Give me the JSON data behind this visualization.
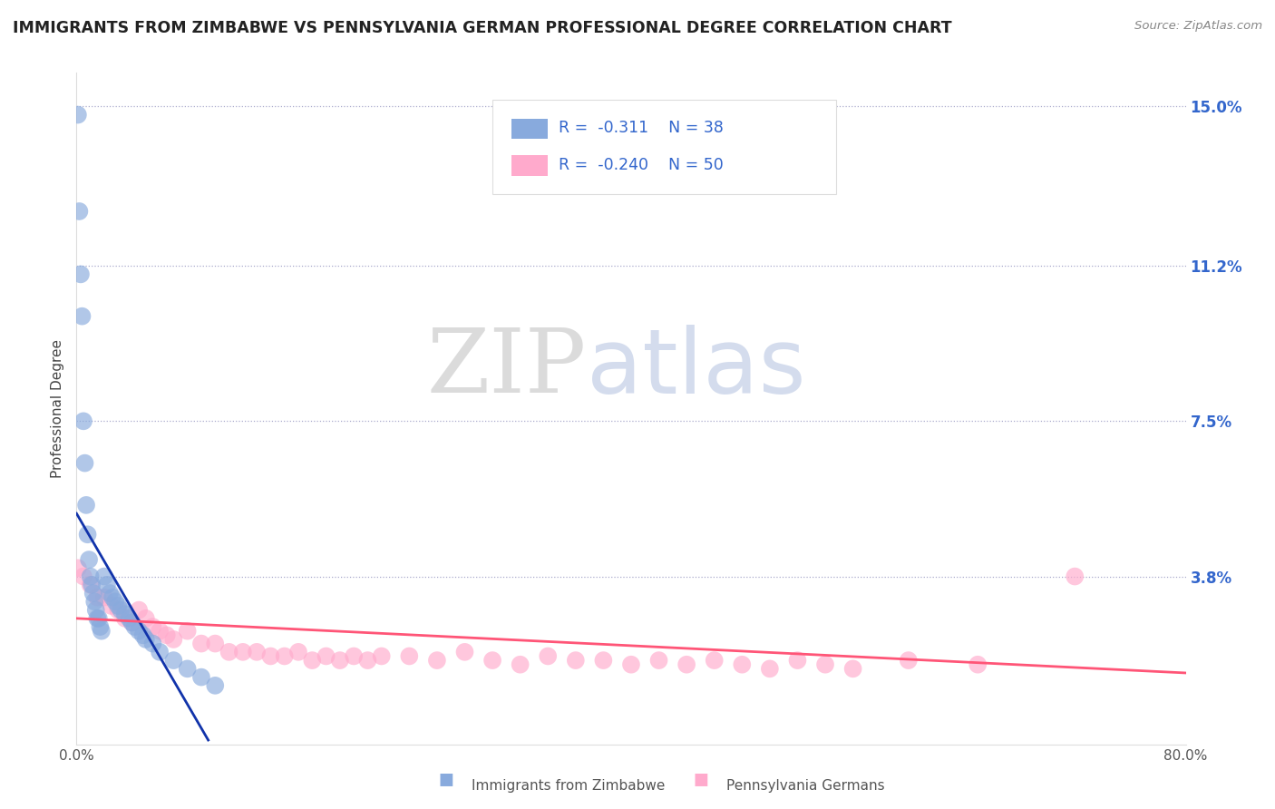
{
  "title": "IMMIGRANTS FROM ZIMBABWE VS PENNSYLVANIA GERMAN PROFESSIONAL DEGREE CORRELATION CHART",
  "source_text": "Source: ZipAtlas.com",
  "ylabel": "Professional Degree",
  "xlim": [
    0.0,
    0.8
  ],
  "ylim": [
    -0.002,
    0.158
  ],
  "ytick_positions": [
    0.038,
    0.075,
    0.112,
    0.15
  ],
  "ytick_labels": [
    "3.8%",
    "7.5%",
    "11.2%",
    "15.0%"
  ],
  "blue_color": "#88aadd",
  "pink_color": "#ffaacc",
  "blue_line_color": "#1133aa",
  "pink_line_color": "#ff5577",
  "legend_R1": "-0.311",
  "legend_N1": "38",
  "legend_R2": "-0.240",
  "legend_N2": "50",
  "legend_label1": "Immigrants from Zimbabwe",
  "legend_label2": "Pennsylvania Germans",
  "blue_scatter_x": [
    0.001,
    0.002,
    0.003,
    0.004,
    0.005,
    0.006,
    0.007,
    0.008,
    0.009,
    0.01,
    0.011,
    0.012,
    0.013,
    0.014,
    0.015,
    0.016,
    0.017,
    0.018,
    0.02,
    0.022,
    0.024,
    0.026,
    0.028,
    0.03,
    0.032,
    0.035,
    0.038,
    0.04,
    0.042,
    0.045,
    0.048,
    0.05,
    0.055,
    0.06,
    0.07,
    0.08,
    0.09,
    0.1
  ],
  "blue_scatter_y": [
    0.148,
    0.125,
    0.11,
    0.1,
    0.075,
    0.065,
    0.055,
    0.048,
    0.042,
    0.038,
    0.036,
    0.034,
    0.032,
    0.03,
    0.028,
    0.028,
    0.026,
    0.025,
    0.038,
    0.036,
    0.034,
    0.033,
    0.032,
    0.031,
    0.03,
    0.029,
    0.028,
    0.027,
    0.026,
    0.025,
    0.024,
    0.023,
    0.022,
    0.02,
    0.018,
    0.016,
    0.014,
    0.012
  ],
  "pink_scatter_x": [
    0.001,
    0.005,
    0.01,
    0.015,
    0.02,
    0.025,
    0.03,
    0.035,
    0.04,
    0.045,
    0.05,
    0.055,
    0.06,
    0.065,
    0.07,
    0.08,
    0.09,
    0.1,
    0.11,
    0.12,
    0.13,
    0.14,
    0.15,
    0.16,
    0.17,
    0.18,
    0.19,
    0.2,
    0.21,
    0.22,
    0.24,
    0.26,
    0.28,
    0.3,
    0.32,
    0.34,
    0.36,
    0.38,
    0.4,
    0.42,
    0.44,
    0.46,
    0.48,
    0.5,
    0.52,
    0.54,
    0.56,
    0.6,
    0.65,
    0.72
  ],
  "pink_scatter_y": [
    0.04,
    0.038,
    0.036,
    0.033,
    0.033,
    0.031,
    0.03,
    0.028,
    0.027,
    0.03,
    0.028,
    0.026,
    0.025,
    0.024,
    0.023,
    0.025,
    0.022,
    0.022,
    0.02,
    0.02,
    0.02,
    0.019,
    0.019,
    0.02,
    0.018,
    0.019,
    0.018,
    0.019,
    0.018,
    0.019,
    0.019,
    0.018,
    0.02,
    0.018,
    0.017,
    0.019,
    0.018,
    0.018,
    0.017,
    0.018,
    0.017,
    0.018,
    0.017,
    0.016,
    0.018,
    0.017,
    0.016,
    0.018,
    0.017,
    0.038
  ],
  "blue_line_x": [
    0.0,
    0.095
  ],
  "blue_line_y_start": 0.053,
  "blue_line_y_end": -0.001,
  "pink_line_x": [
    0.0,
    0.8
  ],
  "pink_line_y_start": 0.028,
  "pink_line_y_end": 0.015
}
